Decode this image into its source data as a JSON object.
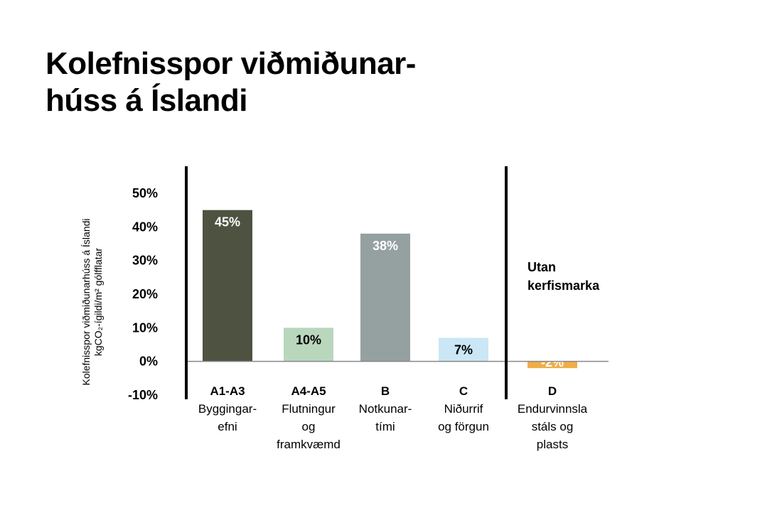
{
  "title_lines": [
    "Kolefnisspor viðmiðunar-",
    "húss á Íslandi"
  ],
  "chart_data": {
    "type": "bar",
    "ylabel_lines": [
      "Kolefnisspor viðmiðunarhúss á Íslandi",
      "kgCO₂-ígildi/m² gólfflatar"
    ],
    "ylim": [
      -10,
      50
    ],
    "yticks": [
      50,
      40,
      30,
      20,
      10,
      0,
      -10
    ],
    "ytick_labels": [
      "50%",
      "40%",
      "30%",
      "20%",
      "10%",
      "0%",
      "-10%"
    ],
    "grid": false,
    "categories": [
      {
        "code": "A1-A3",
        "name": "Byggingar-\nefni",
        "value": 45,
        "label": "45%",
        "color": "#4e5240",
        "label_color": "#ffffff"
      },
      {
        "code": "A4-A5",
        "name": "Flutningur\nog\nframkvæmd",
        "value": 10,
        "label": "10%",
        "color": "#b9d7bd",
        "label_color": "#000000"
      },
      {
        "code": "B",
        "name": "Notkunar-\ntími",
        "value": 38,
        "label": "38%",
        "color": "#95a1a0",
        "label_color": "#ffffff"
      },
      {
        "code": "C",
        "name": "Niðurrif\nog förgun",
        "value": 7,
        "label": "7%",
        "color": "#cbe7f5",
        "label_color": "#000000"
      },
      {
        "code": "D",
        "name": "Endurvinnsla\nstáls og\nplasts",
        "value": -2,
        "label": "-2%",
        "color": "#f0ad48",
        "label_color": "#ffffff"
      }
    ],
    "annotation": "Utan\nkerfismarka"
  }
}
